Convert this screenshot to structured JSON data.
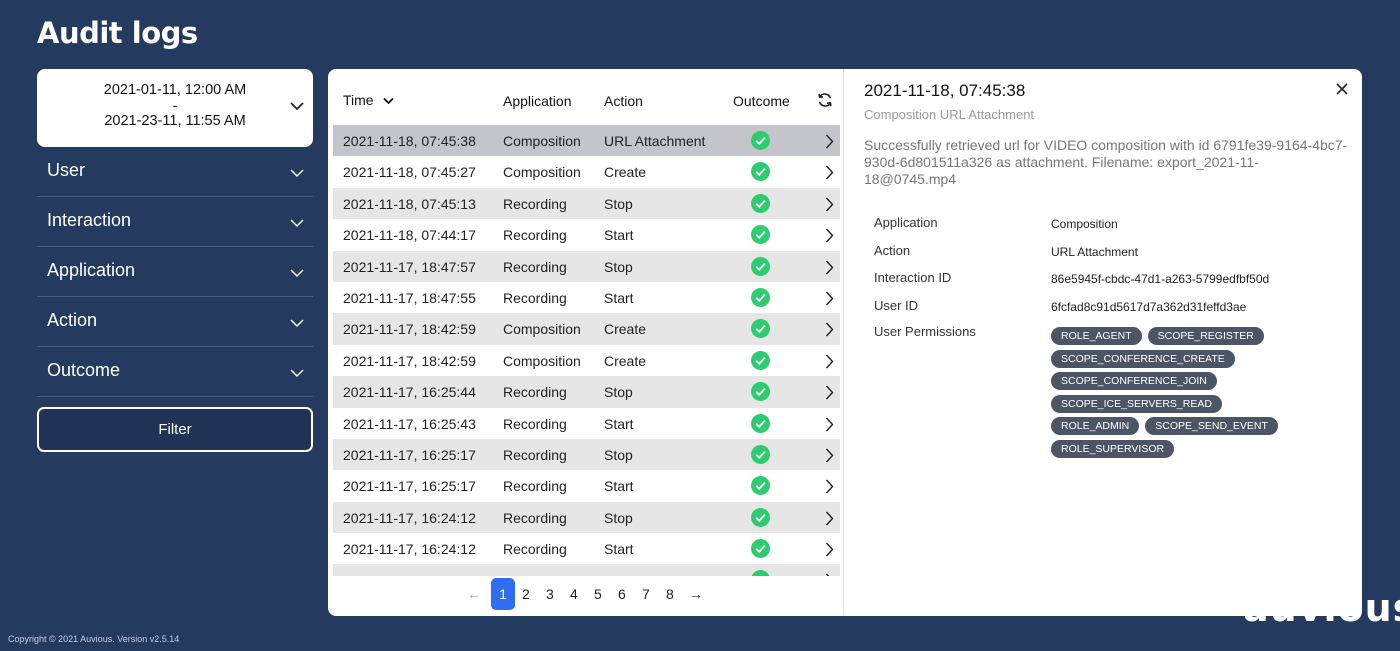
{
  "page": {
    "title": "Audit logs"
  },
  "sidebar": {
    "date_range": {
      "from": "2021-01-11, 12:00 AM",
      "separator": "-",
      "to": "2021-23-11, 11:55 AM"
    },
    "filters": [
      {
        "label": "User"
      },
      {
        "label": "Interaction"
      },
      {
        "label": "Application"
      },
      {
        "label": "Action"
      },
      {
        "label": "Outcome"
      }
    ],
    "filter_button": "Filter"
  },
  "table": {
    "headers": {
      "time": "Time",
      "application": "Application",
      "action": "Action",
      "outcome": "Outcome"
    },
    "rows": [
      {
        "time": "2021-11-18, 07:45:38",
        "application": "Composition",
        "action": "URL Attachment"
      },
      {
        "time": "2021-11-18, 07:45:27",
        "application": "Composition",
        "action": "Create"
      },
      {
        "time": "2021-11-18, 07:45:13",
        "application": "Recording",
        "action": "Stop"
      },
      {
        "time": "2021-11-18, 07:44:17",
        "application": "Recording",
        "action": "Start"
      },
      {
        "time": "2021-11-17, 18:47:57",
        "application": "Recording",
        "action": "Stop"
      },
      {
        "time": "2021-11-17, 18:47:55",
        "application": "Recording",
        "action": "Start"
      },
      {
        "time": "2021-11-17, 18:42:59",
        "application": "Composition",
        "action": "Create"
      },
      {
        "time": "2021-11-17, 18:42:59",
        "application": "Composition",
        "action": "Create"
      },
      {
        "time": "2021-11-17, 16:25:44",
        "application": "Recording",
        "action": "Stop"
      },
      {
        "time": "2021-11-17, 16:25:43",
        "application": "Recording",
        "action": "Start"
      },
      {
        "time": "2021-11-17, 16:25:17",
        "application": "Recording",
        "action": "Stop"
      },
      {
        "time": "2021-11-17, 16:25:17",
        "application": "Recording",
        "action": "Start"
      },
      {
        "time": "2021-11-17, 16:24:12",
        "application": "Recording",
        "action": "Stop"
      },
      {
        "time": "2021-11-17, 16:24:12",
        "application": "Recording",
        "action": "Start"
      }
    ],
    "pagination": {
      "prev": "←",
      "pages": [
        "1",
        "2",
        "3",
        "4",
        "5",
        "6",
        "7",
        "8"
      ],
      "current": "1",
      "next": "→"
    }
  },
  "detail": {
    "title": "2021-11-18, 07:45:38",
    "subtitle": "Composition URL Attachment",
    "description": "Successfully retrieved url for VIDEO composition with id 6791fe39-9164-4bc7-930d-6d801511a326 as attachment. Filename: export_2021-11-18@0745.mp4",
    "fields": [
      {
        "label": "Application",
        "value": "Composition"
      },
      {
        "label": "Action",
        "value": "URL Attachment"
      },
      {
        "label": "Interaction ID",
        "value": "86e5945f-cbdc-47d1-a263-5799edfbf50d"
      },
      {
        "label": "User ID",
        "value": "6fcfad8c91d5617d7a362d31feffd3ae"
      },
      {
        "label": "User Permissions",
        "value": ""
      }
    ],
    "permissions": [
      "ROLE_AGENT",
      "SCOPE_REGISTER",
      "SCOPE_CONFERENCE_CREATE",
      "SCOPE_CONFERENCE_JOIN",
      "SCOPE_ICE_SERVERS_READ",
      "ROLE_ADMIN",
      "SCOPE_SEND_EVENT",
      "ROLE_SUPERVISOR"
    ]
  },
  "footer": {
    "copyright": "Copyright © 2021 Auvious. Version v2.5.14",
    "watermark": "auvious"
  },
  "colors": {
    "background": "#243a5e",
    "accent": "#2f6ef0",
    "success": "#2ecc71",
    "selected_row": "#c4c4cb"
  }
}
